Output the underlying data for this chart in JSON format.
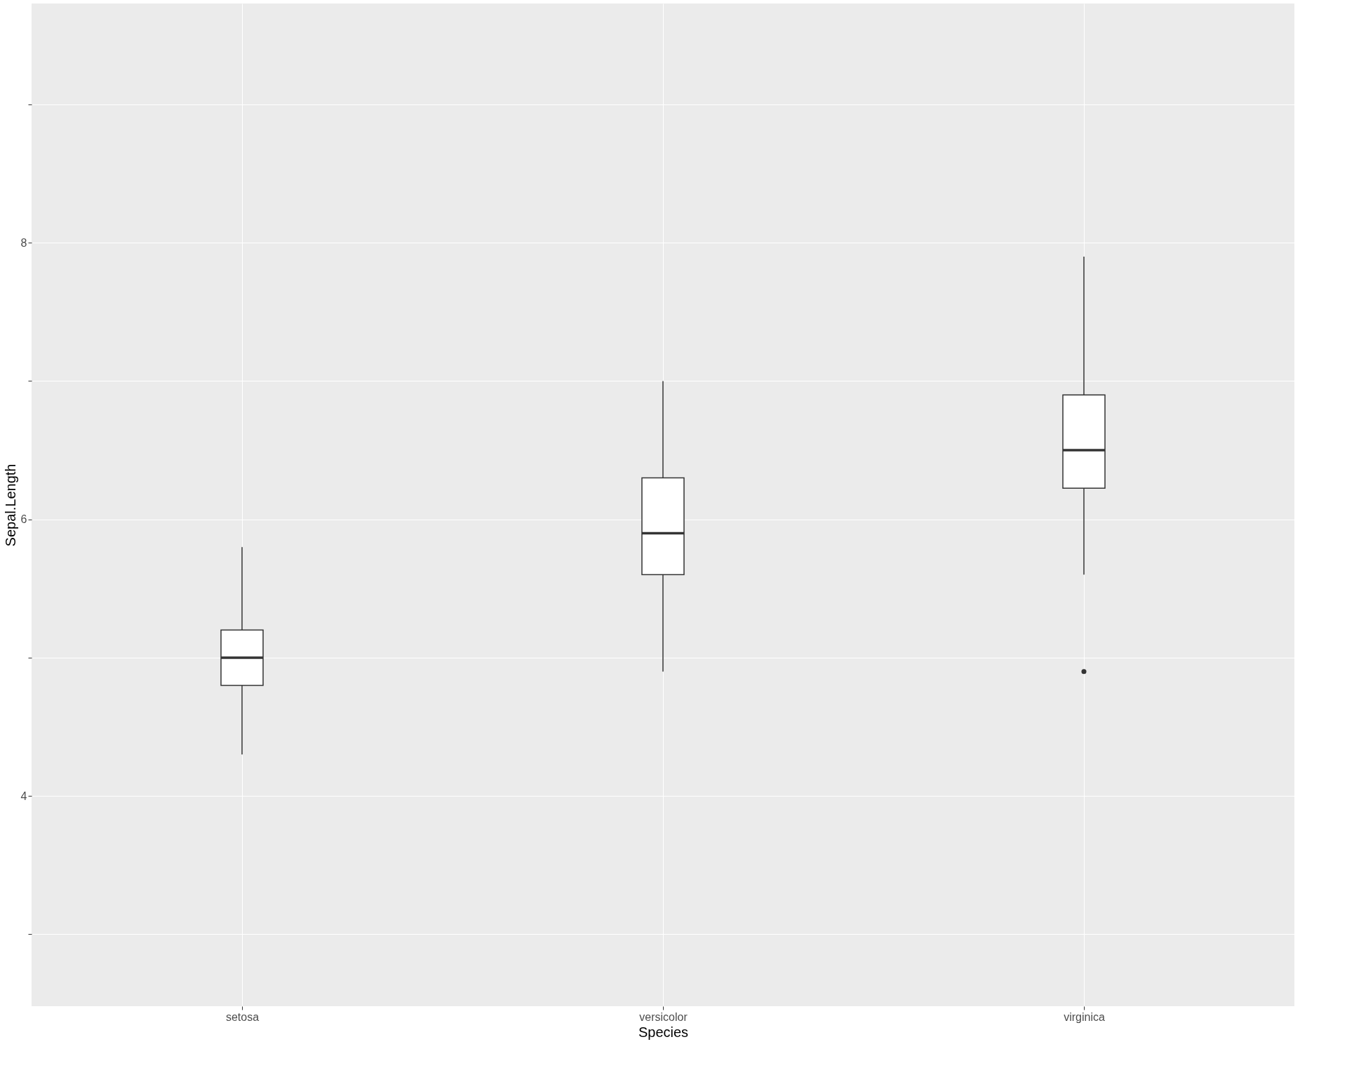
{
  "chart_data": {
    "type": "box",
    "xlabel": "Species",
    "ylabel": "Sepal.Length",
    "categories": [
      "setosa",
      "versicolor",
      "virginica"
    ],
    "ylim": [
      2.48,
      9.73
    ],
    "yticks": [
      {
        "value": 3,
        "label": null
      },
      4,
      {
        "value": 5,
        "label": null
      },
      6,
      {
        "value": 7,
        "label": null
      },
      8,
      {
        "value": 9,
        "label": null
      }
    ],
    "grid": true,
    "boxes": [
      {
        "low": 4.3,
        "q1": 4.8,
        "median": 5.0,
        "q3": 5.2,
        "high": 5.8
      },
      {
        "low": 4.9,
        "q1": 5.6,
        "median": 5.9,
        "q3": 6.3,
        "high": 7.0
      },
      {
        "low": 5.6,
        "q1": 6.225,
        "median": 6.5,
        "q3": 6.9,
        "high": 7.9,
        "outliers": [
          4.9
        ]
      }
    ]
  }
}
